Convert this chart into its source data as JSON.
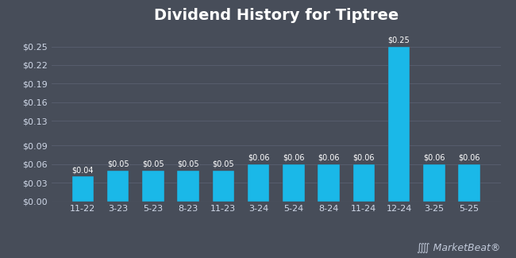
{
  "title": "Dividend History for Tiptree",
  "categories": [
    "11-22",
    "3-23",
    "5-23",
    "8-23",
    "11-23",
    "3-24",
    "5-24",
    "8-24",
    "11-24",
    "12-24",
    "3-25",
    "5-25"
  ],
  "values": [
    0.04,
    0.05,
    0.05,
    0.05,
    0.05,
    0.06,
    0.06,
    0.06,
    0.06,
    0.25,
    0.06,
    0.06
  ],
  "bar_color": "#1ab8e8",
  "background_color": "#474d59",
  "plot_bg_color": "#474d59",
  "grid_color": "#5a6070",
  "text_color": "#d0d8e8",
  "title_color": "#ffffff",
  "title_fontsize": 14,
  "tick_fontsize": 8,
  "ylim": [
    0,
    0.275
  ],
  "yticks": [
    0.0,
    0.03,
    0.06,
    0.09,
    0.13,
    0.16,
    0.19,
    0.22,
    0.25
  ],
  "ytick_labels": [
    "$0.00",
    "$0.03",
    "$0.06",
    "$0.09",
    "$0.13",
    "$0.16",
    "$0.19",
    "$0.22",
    "$0.25"
  ],
  "bar_edge_color": "#474d59",
  "value_label_color": "#ffffff",
  "value_label_fontsize": 7,
  "marketbeat_color": "#c0c8d8",
  "marketbeat_fontsize": 9
}
